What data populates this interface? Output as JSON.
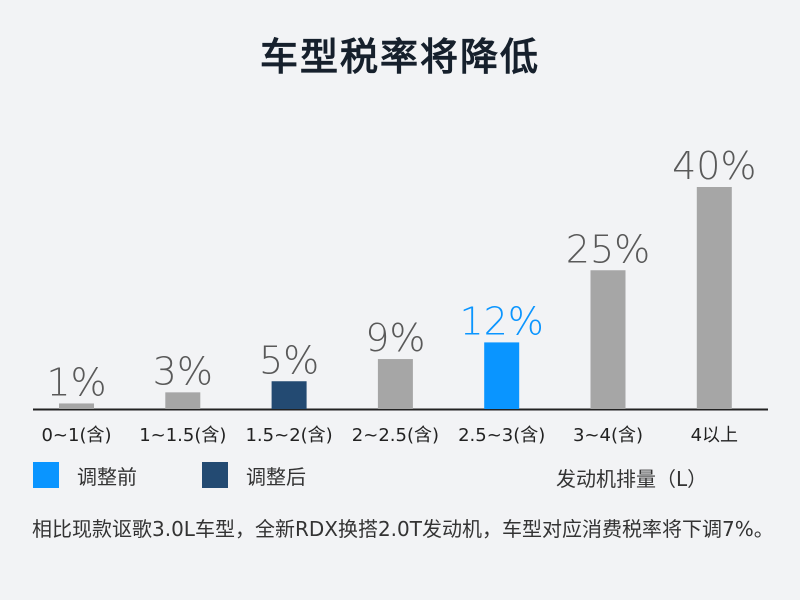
{
  "chart_data": {
    "type": "bar",
    "title": "车型税率将降低",
    "categories": [
      "0~1(含)",
      "1~1.5(含)",
      "1.5~2(含)",
      "2~2.5(含)",
      "2.5~3(含)",
      "3~4(含)",
      "4以上"
    ],
    "values": [
      1,
      3,
      5,
      9,
      12,
      25,
      40
    ],
    "value_labels": [
      "1%",
      "3%",
      "5%",
      "9%",
      "12%",
      "25%",
      "40%"
    ],
    "bar_colors": [
      "#a6a6a6",
      "#a6a6a6",
      "#234a72",
      "#a6a6a6",
      "#0a95ff",
      "#a6a6a6",
      "#a6a6a6"
    ],
    "label_colors": [
      "#595959",
      "#595959",
      "#595959",
      "#595959",
      "#0a95ff",
      "#595959",
      "#595959"
    ],
    "ylim": [
      0,
      40
    ],
    "xlabel": "发动机排量（L）",
    "grid": false
  },
  "legend": [
    {
      "label": "调整前",
      "color": "#0a95ff"
    },
    {
      "label": "调整后",
      "color": "#234a72"
    }
  ],
  "footnote": "相比现款讴歌3.0L车型，全新RDX换搭2.0T发动机，车型对应消费税率将下调7%。"
}
